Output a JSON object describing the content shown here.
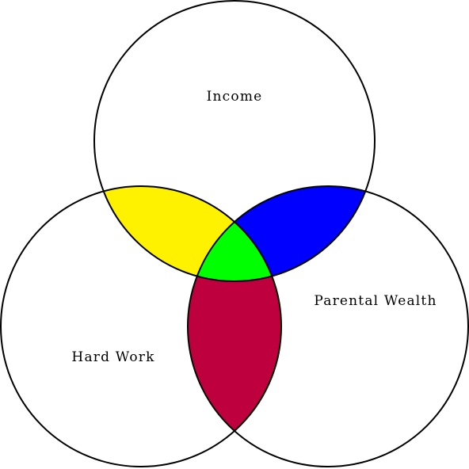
{
  "diagram": {
    "type": "venn",
    "sets": [
      {
        "id": "income",
        "label": "Income"
      },
      {
        "id": "hard_work",
        "label": "Hard Work"
      },
      {
        "id": "parental_wealth",
        "label": "Parental Wealth"
      }
    ],
    "intersection_colors": {
      "income_hard_work": "#FFF200",
      "income_parental_wealth": "#0000FF",
      "hard_work_parental_wealth": "#BF003F",
      "all_three": "#00FF00"
    }
  }
}
